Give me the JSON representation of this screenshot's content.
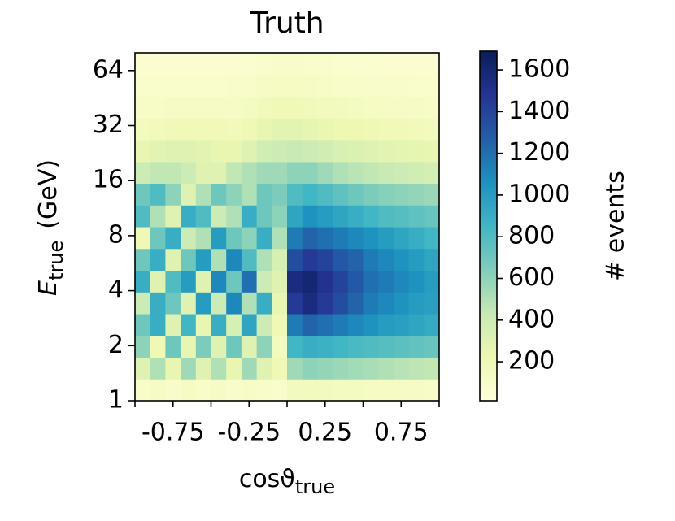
{
  "chart_data": {
    "type": "heatmap",
    "title": "Truth",
    "xlabel": {
      "main": "cosϑ",
      "sub": "true"
    },
    "ylabel": {
      "main": "E",
      "sub": "true",
      "suffix": "(GeV)"
    },
    "colorbar_label": "# events",
    "colormap": "YlGnBu",
    "xlim": [
      -1,
      1
    ],
    "xticks": [
      -0.75,
      -0.25,
      0.25,
      0.75
    ],
    "xminorticks": [
      -1,
      -0.5,
      0,
      0.5,
      1
    ],
    "ylim": [
      1,
      80
    ],
    "yscale": "log",
    "yticks": [
      1,
      2,
      4,
      8,
      16,
      32,
      64
    ],
    "clim": [
      13,
      1690
    ],
    "cticks": [
      200,
      400,
      600,
      800,
      1000,
      1200,
      1400,
      1600
    ],
    "xbins": [
      -1,
      -0.9,
      -0.8,
      -0.7,
      -0.6,
      -0.5,
      -0.4,
      -0.3,
      -0.2,
      -0.1,
      0,
      0.1,
      0.2,
      0.3,
      0.4,
      0.5,
      0.6,
      0.7,
      0.8,
      0.9,
      1
    ],
    "ybins": [
      1,
      1.315,
      1.73,
      2.27,
      2.99,
      3.93,
      5.17,
      6.8,
      8.94,
      11.76,
      15.47,
      20.3,
      26.8,
      35.2,
      46.3,
      60.8,
      80
    ],
    "z": [
      [
        100,
        120,
        90,
        130,
        100,
        120,
        90,
        110,
        100,
        80,
        150,
        160,
        150,
        140,
        140,
        130,
        130,
        120,
        120,
        110
      ],
      [
        300,
        500,
        250,
        550,
        300,
        500,
        250,
        550,
        300,
        200,
        550,
        600,
        580,
        560,
        540,
        520,
        500,
        480,
        460,
        450
      ],
      [
        600,
        200,
        700,
        250,
        650,
        300,
        700,
        300,
        600,
        150,
        850,
        900,
        880,
        850,
        820,
        800,
        780,
        760,
        740,
        720
      ],
      [
        700,
        900,
        300,
        850,
        250,
        900,
        350,
        950,
        400,
        200,
        1150,
        1250,
        1200,
        1150,
        1100,
        1050,
        1000,
        980,
        950,
        920
      ],
      [
        400,
        900,
        700,
        300,
        1000,
        400,
        1100,
        500,
        900,
        250,
        1450,
        1550,
        1450,
        1350,
        1250,
        1150,
        1100,
        1050,
        1000,
        980
      ],
      [
        900,
        300,
        800,
        1000,
        300,
        1100,
        700,
        1200,
        400,
        300,
        1550,
        1600,
        1500,
        1400,
        1300,
        1200,
        1150,
        1100,
        1050,
        1000
      ],
      [
        700,
        900,
        300,
        700,
        1000,
        500,
        1100,
        800,
        500,
        350,
        1350,
        1450,
        1400,
        1300,
        1250,
        1150,
        1100,
        1050,
        1000,
        950
      ],
      [
        200,
        700,
        900,
        400,
        500,
        1000,
        700,
        600,
        900,
        500,
        1150,
        1250,
        1200,
        1150,
        1100,
        1050,
        1000,
        950,
        900,
        850
      ],
      [
        800,
        500,
        300,
        900,
        800,
        400,
        500,
        900,
        700,
        600,
        950,
        1050,
        1000,
        950,
        900,
        850,
        800,
        780,
        750,
        720
      ],
      [
        700,
        800,
        600,
        300,
        500,
        700,
        600,
        500,
        700,
        650,
        800,
        850,
        800,
        750,
        700,
        650,
        620,
        600,
        580,
        560
      ],
      [
        400,
        450,
        450,
        400,
        300,
        300,
        450,
        500,
        550,
        550,
        600,
        600,
        550,
        500,
        470,
        450,
        420,
        400,
        380,
        360
      ],
      [
        250,
        280,
        300,
        300,
        280,
        250,
        250,
        300,
        380,
        400,
        420,
        400,
        370,
        340,
        320,
        300,
        280,
        270,
        260,
        250
      ],
      [
        160,
        170,
        180,
        190,
        190,
        180,
        170,
        200,
        250,
        280,
        280,
        260,
        240,
        220,
        210,
        200,
        190,
        180,
        170,
        160
      ],
      [
        110,
        110,
        120,
        120,
        120,
        120,
        120,
        140,
        170,
        190,
        190,
        170,
        160,
        150,
        140,
        130,
        130,
        120,
        120,
        110
      ],
      [
        80,
        80,
        80,
        80,
        80,
        80,
        90,
        100,
        120,
        130,
        130,
        120,
        110,
        100,
        100,
        90,
        90,
        90,
        80,
        80
      ],
      [
        60,
        60,
        60,
        60,
        60,
        60,
        60,
        70,
        80,
        90,
        90,
        80,
        80,
        70,
        70,
        70,
        60,
        60,
        60,
        60
      ]
    ]
  }
}
